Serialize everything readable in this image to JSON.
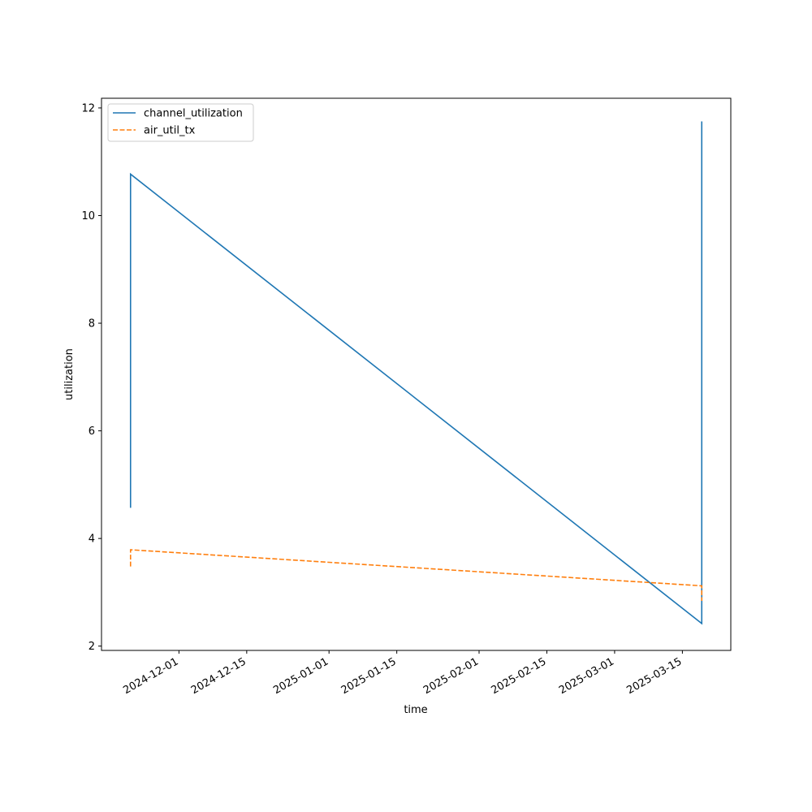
{
  "chart_data": {
    "type": "line",
    "x_label": "time",
    "y_label": "utilization",
    "x": [
      "2024-11-21",
      "2024-11-21",
      "2025-03-19",
      "2025-03-19",
      "2025-03-19"
    ],
    "series": [
      {
        "name": "channel_utilization",
        "color": "#1f77b4",
        "linestyle": "solid",
        "values": [
          4.57,
          10.77,
          2.42,
          11.75,
          4.38
        ]
      },
      {
        "name": "air_util_tx",
        "color": "#ff7f0e",
        "linestyle": "dashed",
        "values": [
          3.48,
          3.79,
          3.12,
          2.95,
          2.84
        ]
      }
    ],
    "xlim": [
      "2024-11-15",
      "2025-03-25"
    ],
    "xticks": [
      "2024-12-01",
      "2024-12-15",
      "2025-01-01",
      "2025-01-15",
      "2025-02-01",
      "2025-02-15",
      "2025-03-01",
      "2025-03-15"
    ],
    "ylim": [
      1.92,
      12.18
    ],
    "yticks": [
      2,
      4,
      6,
      8,
      10,
      12
    ],
    "grid": false,
    "legend": "upper left"
  }
}
